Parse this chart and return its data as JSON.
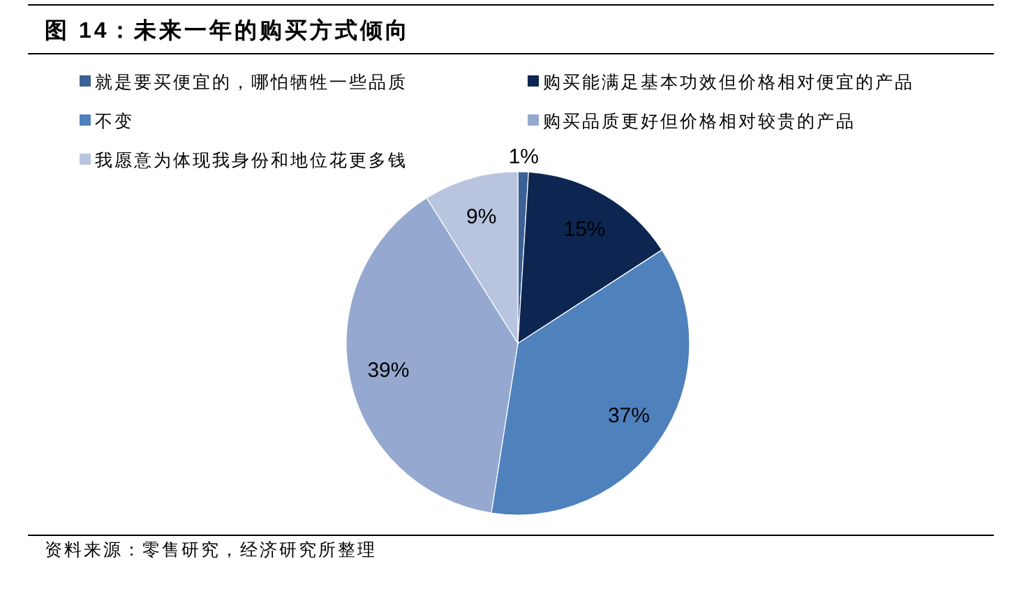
{
  "chart_data": {
    "type": "pie",
    "title": "图 14：未来一年的购买方式倾向",
    "categories": [
      "就是要买便宜的，哪怕牺牲一些品质",
      "购买能满足基本功效但价格相对便宜的产品",
      "不变",
      "购买品质更好但价格相对较贵的产品",
      "我愿意为体现我身份和地位花更多钱"
    ],
    "values": [
      1,
      15,
      37,
      39,
      9
    ],
    "colors": [
      "#3b6196",
      "#0c2651",
      "#4f81bd",
      "#95a9d0",
      "#b9c5df"
    ],
    "value_labels": [
      "1%",
      "15%",
      "37%",
      "39%",
      "9%"
    ],
    "legend": "top",
    "annotations": [
      "资料来源：零售研究，经济研究所整理"
    ]
  }
}
